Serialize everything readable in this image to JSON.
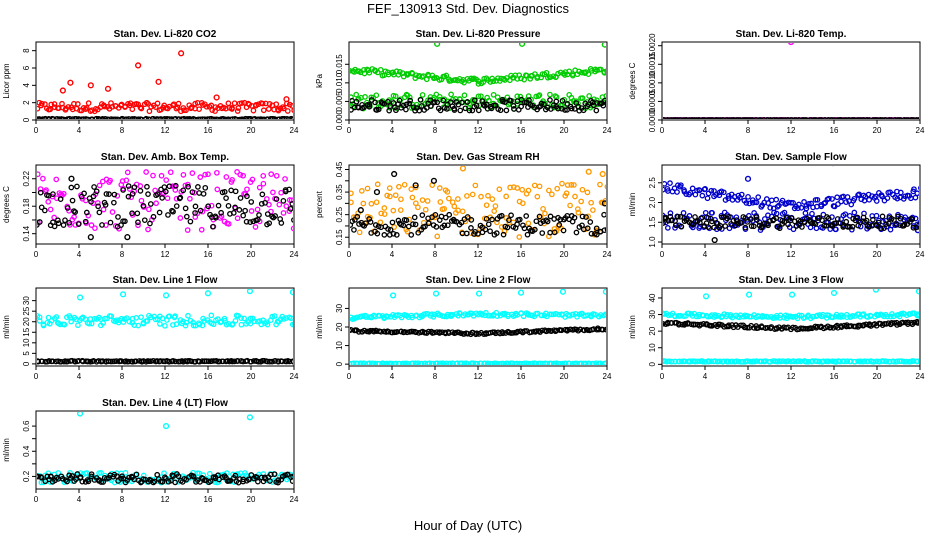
{
  "figure": {
    "title": "FEF_130913  Std. Dev. Diagnostics",
    "xlabel": "Hour of Day (UTC)",
    "x_ticks": [
      0,
      4,
      8,
      12,
      16,
      20,
      24
    ]
  },
  "chart_data": [
    {
      "type": "scatter",
      "title": "Stan. Dev. Li-820 CO2",
      "ylabel": "Licor ppm",
      "xlim": [
        0,
        24
      ],
      "ylim": [
        0,
        9
      ],
      "yticks": [
        0,
        2,
        4,
        6,
        8
      ],
      "grid": false,
      "series": [
        {
          "color": "#ff0000",
          "mode": "band",
          "base": 1.0,
          "spread": 1.0,
          "outliers": [
            [
              2.5,
              3.4
            ],
            [
              3.2,
              4.3
            ],
            [
              5.1,
              4.0
            ],
            [
              6.7,
              3.6
            ],
            [
              9.5,
              6.3
            ],
            [
              11.4,
              4.4
            ],
            [
              13.5,
              7.7
            ],
            [
              13.6,
              9.3
            ],
            [
              16.8,
              2.6
            ],
            [
              23.3,
              2.4
            ]
          ]
        },
        {
          "color": "#000000",
          "mode": "band",
          "base": 0.05,
          "spread": 0.1,
          "outliers": []
        }
      ]
    },
    {
      "type": "scatter",
      "title": "Stan. Dev. Li-820 Pressure",
      "ylabel": "kPa",
      "xlim": [
        0,
        24
      ],
      "ylim": [
        0,
        0.021
      ],
      "yticks": [
        0,
        0.005,
        0.01,
        0.015
      ],
      "tick_labels": [
        "0.000",
        "0.005",
        "0.010",
        "0.015"
      ],
      "grid": false,
      "series": [
        {
          "color": "#00cc00",
          "mode": "trend",
          "y0": 0.0135,
          "y1": 0.0135,
          "ymid": 0.0105,
          "spread": 0.0016,
          "outliers": [
            [
              8.2,
              0.0205
            ],
            [
              16.1,
              0.0205
            ],
            [
              23.8,
              0.0203
            ]
          ]
        },
        {
          "color": "#00cc00",
          "mode": "band",
          "base": 0.003,
          "spread": 0.004,
          "outliers": []
        },
        {
          "color": "#000000",
          "mode": "band",
          "base": 0.0025,
          "spread": 0.003,
          "outliers": []
        }
      ]
    },
    {
      "type": "scatter",
      "title": "Stan. Dev. Li-820 Temp.",
      "ylabel": "degrees C",
      "xlim": [
        0,
        24
      ],
      "ylim": [
        0,
        0.0021
      ],
      "yticks": [
        0,
        0.0005,
        0.001,
        0.0015,
        0.002
      ],
      "tick_labels": [
        "0.0000",
        "0.0005",
        "0.0010",
        "0.0015",
        "0.0020"
      ],
      "grid": false,
      "series": [
        {
          "color": "#ff00ff",
          "mode": "band",
          "base": 0.0,
          "spread": 0.0,
          "outliers": [
            [
              12.0,
              0.0021
            ],
            [
              0.1,
              0.0
            ]
          ]
        },
        {
          "color": "#000000",
          "mode": "band",
          "base": 0.0,
          "spread": 0.0,
          "outliers": []
        }
      ]
    },
    {
      "type": "scatter",
      "title": "Stan. Dev. Amb. Box Temp.",
      "ylabel": "degrees C",
      "xlim": [
        0,
        24
      ],
      "ylim": [
        0.125,
        0.24
      ],
      "yticks": [
        0.14,
        0.16,
        0.18,
        0.2,
        0.22
      ],
      "tick_labels": [
        "0.14",
        "",
        "0.18",
        "",
        "0.22"
      ],
      "grid": false,
      "series": [
        {
          "color": "#ff00ff",
          "mode": "band",
          "base": 0.145,
          "spread": 0.085,
          "outliers": []
        },
        {
          "color": "#000000",
          "mode": "band",
          "base": 0.15,
          "spread": 0.06,
          "outliers": [
            [
              3.3,
              0.22
            ],
            [
              5.1,
              0.135
            ],
            [
              8.5,
              0.135
            ]
          ]
        }
      ]
    },
    {
      "type": "scatter",
      "title": "Stan. Dev. Gas Stream RH",
      "ylabel": "percent",
      "xlim": [
        0,
        24
      ],
      "ylim": [
        0.12,
        0.47
      ],
      "yticks": [
        0.15,
        0.2,
        0.25,
        0.3,
        0.35,
        0.4,
        0.45
      ],
      "tick_labels": [
        "0.15",
        "",
        "0.25",
        "",
        "0.35",
        "",
        "0.45"
      ],
      "grid": false,
      "series": [
        {
          "color": "#ff9900",
          "mode": "band",
          "base": 0.15,
          "spread": 0.24,
          "outliers": [
            [
              10.6,
              0.455
            ],
            [
              22.3,
              0.44
            ],
            [
              23.6,
              0.43
            ]
          ]
        },
        {
          "color": "#000000",
          "mode": "band",
          "base": 0.16,
          "spread": 0.09,
          "outliers": [
            [
              1.1,
              0.27
            ],
            [
              2.6,
              0.35
            ],
            [
              4.2,
              0.43
            ],
            [
              6.2,
              0.38
            ],
            [
              7.9,
              0.4
            ],
            [
              23.8,
              0.3
            ]
          ]
        }
      ]
    },
    {
      "type": "scatter",
      "title": "Stan. Dev. Sample Flow",
      "ylabel": "ml/min",
      "xlim": [
        0,
        24
      ],
      "ylim": [
        0.95,
        2.95
      ],
      "yticks": [
        1.0,
        1.5,
        2.0,
        2.5
      ],
      "tick_labels": [
        "1.0",
        "1.5",
        "2.0",
        "2.5"
      ],
      "grid": false,
      "series": [
        {
          "color": "#0000cc",
          "mode": "trend",
          "y0": 2.4,
          "y1": 2.25,
          "ymid": 1.9,
          "spread": 0.25,
          "outliers": [
            [
              8.0,
              2.6
            ],
            [
              15.9,
              3.0
            ],
            [
              23.8,
              1.3
            ]
          ]
        },
        {
          "color": "#0000cc",
          "mode": "band",
          "base": 1.3,
          "spread": 0.45,
          "outliers": []
        },
        {
          "color": "#000000",
          "mode": "band",
          "base": 1.35,
          "spread": 0.3,
          "outliers": [
            [
              4.9,
              1.05
            ]
          ]
        }
      ]
    },
    {
      "type": "scatter",
      "title": "Stan. Dev. Line 1 Flow",
      "ylabel": "ml/min",
      "xlim": [
        0,
        24
      ],
      "ylim": [
        -1,
        36
      ],
      "yticks": [
        0,
        5,
        10,
        15,
        20,
        25,
        30
      ],
      "tick_labels": [
        "0",
        "5",
        "10",
        "15",
        "20",
        "25",
        "30"
      ],
      "grid": false,
      "series": [
        {
          "color": "#00ffff",
          "mode": "band",
          "base": 18.0,
          "spread": 5.0,
          "outliers": [
            [
              4.1,
              31.5
            ],
            [
              8.1,
              33
            ],
            [
              12.1,
              32.5
            ],
            [
              16.0,
              33.5
            ],
            [
              19.9,
              34.5
            ],
            [
              23.9,
              34
            ]
          ]
        },
        {
          "color": "#000000",
          "mode": "band",
          "base": 1.0,
          "spread": 0.5,
          "outliers": []
        }
      ]
    },
    {
      "type": "scatter",
      "title": "Stan. Dev. Line 2 Flow",
      "ylabel": "ml/min",
      "xlim": [
        0,
        24
      ],
      "ylim": [
        -1,
        41
      ],
      "yticks": [
        0,
        10,
        20,
        30
      ],
      "tick_labels": [
        "0",
        "10",
        "20",
        "30"
      ],
      "grid": false,
      "series": [
        {
          "color": "#00ffff",
          "mode": "trend",
          "y0": 25,
          "y1": 26,
          "ymid": 27,
          "spread": 2,
          "outliers": [
            [
              4.1,
              37
            ],
            [
              8.1,
              38
            ],
            [
              12.1,
              38
            ],
            [
              16.0,
              38.5
            ],
            [
              19.9,
              39
            ],
            [
              23.9,
              39
            ]
          ]
        },
        {
          "color": "#00ffff",
          "mode": "band",
          "base": 0.2,
          "spread": 0.3,
          "outliers": []
        },
        {
          "color": "#000000",
          "mode": "trend",
          "y0": 18,
          "y1": 19,
          "ymid": 16.5,
          "spread": 1.0,
          "outliers": []
        }
      ]
    },
    {
      "type": "scatter",
      "title": "Stan. Dev. Line 3 Flow",
      "ylabel": "ml/min",
      "xlim": [
        0,
        24
      ],
      "ylim": [
        -1,
        46
      ],
      "yticks": [
        0,
        10,
        20,
        30,
        40
      ],
      "tick_labels": [
        "0",
        "10",
        "20",
        "30",
        "40"
      ],
      "grid": false,
      "series": [
        {
          "color": "#00ffff",
          "mode": "trend",
          "y0": 30,
          "y1": 30,
          "ymid": 28.5,
          "spread": 2,
          "outliers": [
            [
              4.1,
              41
            ],
            [
              8.1,
              42
            ],
            [
              12.1,
              42
            ],
            [
              16.0,
              43
            ],
            [
              19.9,
              45
            ],
            [
              23.9,
              44
            ]
          ]
        },
        {
          "color": "#00ffff",
          "mode": "band",
          "base": 1.5,
          "spread": 0.5,
          "outliers": []
        },
        {
          "color": "#000000",
          "mode": "trend",
          "y0": 25,
          "y1": 25,
          "ymid": 21.5,
          "spread": 1.5,
          "outliers": []
        }
      ]
    },
    {
      "type": "scatter",
      "title": "Stan. Dev. Line 4 (LT) Flow",
      "ylabel": "ml/min",
      "xlim": [
        0,
        24
      ],
      "ylim": [
        0.1,
        0.72
      ],
      "yticks": [
        0.2,
        0.3,
        0.4,
        0.5,
        0.6
      ],
      "tick_labels": [
        "0.2",
        "",
        "0.4",
        "",
        "0.6"
      ],
      "grid": false,
      "series": [
        {
          "color": "#00ffff",
          "mode": "band",
          "base": 0.15,
          "spread": 0.08,
          "outliers": [
            [
              4.1,
              0.7
            ],
            [
              12.1,
              0.6
            ],
            [
              19.9,
              0.67
            ]
          ]
        },
        {
          "color": "#000000",
          "mode": "band",
          "base": 0.15,
          "spread": 0.07,
          "outliers": []
        }
      ]
    }
  ]
}
